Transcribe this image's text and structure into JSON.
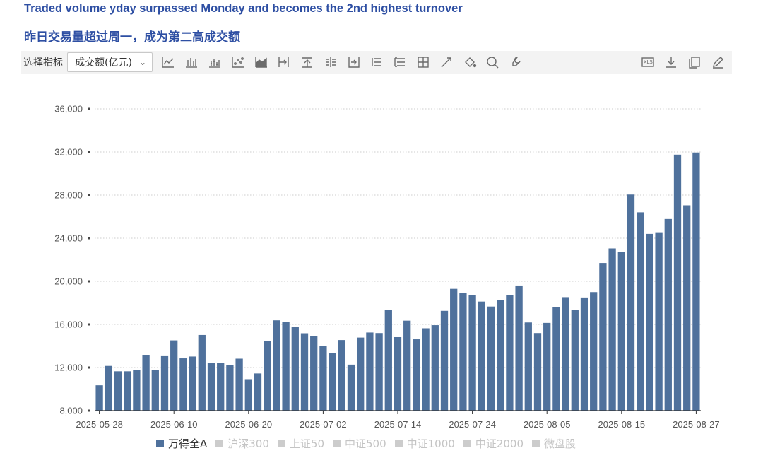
{
  "titles": {
    "english": "Traded volume yday surpassed Monday and becomes the 2nd highest turnover",
    "chinese": "昨日交易量超过周一，成为第二高成交额"
  },
  "toolbar": {
    "indicator_label": "选择指标",
    "indicator_value": "成交额(亿元)",
    "left_icons": [
      "line-chart-icon",
      "bar-chart-icon",
      "stacked-bar-icon",
      "scatter-icon",
      "area-chart-icon",
      "arrow-right-bar-icon",
      "upload-icon",
      "list-align-icon",
      "arrow-into-icon",
      "list-icon",
      "table-list-icon",
      "grid-icon",
      "trend-icon",
      "fill-bucket-icon",
      "zoom-icon",
      "wrench-icon"
    ],
    "xls_label": "XLS",
    "right_icons": [
      "download-icon",
      "copy-icon",
      "edit-icon"
    ]
  },
  "colors": {
    "bar": "#4f719c",
    "grid": "#cccccc",
    "legend_off": "#cccccc",
    "title": "#2e4fa3"
  },
  "chart_data": {
    "type": "bar",
    "title": "",
    "xlabel": "",
    "ylabel": "",
    "ylim": [
      8000,
      36000
    ],
    "yticks": [
      8000,
      12000,
      16000,
      20000,
      24000,
      28000,
      32000,
      36000
    ],
    "ytick_labels": [
      "8,000",
      "12,000",
      "16,000",
      "20,000",
      "24,000",
      "28,000",
      "32,000",
      "36,000"
    ],
    "grid": "horizontal dotted",
    "legend_position": "bottom",
    "categories": [
      "2025-05-28",
      "2025-05-29",
      "2025-05-30",
      "2025-06-03",
      "2025-06-04",
      "2025-06-05",
      "2025-06-06",
      "2025-06-09",
      "2025-06-10",
      "2025-06-11",
      "2025-06-12",
      "2025-06-13",
      "2025-06-16",
      "2025-06-17",
      "2025-06-18",
      "2025-06-19",
      "2025-06-20",
      "2025-06-23",
      "2025-06-24",
      "2025-06-25",
      "2025-06-26",
      "2025-06-27",
      "2025-06-30",
      "2025-07-01",
      "2025-07-02",
      "2025-07-03",
      "2025-07-04",
      "2025-07-07",
      "2025-07-08",
      "2025-07-09",
      "2025-07-10",
      "2025-07-11",
      "2025-07-14",
      "2025-07-15",
      "2025-07-16",
      "2025-07-17",
      "2025-07-18",
      "2025-07-21",
      "2025-07-22",
      "2025-07-23",
      "2025-07-24",
      "2025-07-25",
      "2025-07-28",
      "2025-07-29",
      "2025-07-30",
      "2025-07-31",
      "2025-08-01",
      "2025-08-04",
      "2025-08-05",
      "2025-08-06",
      "2025-08-07",
      "2025-08-08",
      "2025-08-11",
      "2025-08-12",
      "2025-08-13",
      "2025-08-14",
      "2025-08-15",
      "2025-08-18",
      "2025-08-19",
      "2025-08-20",
      "2025-08-21",
      "2025-08-22",
      "2025-08-25",
      "2025-08-26",
      "2025-08-27"
    ],
    "xtick_labels": [
      "2025-05-28",
      "2025-06-10",
      "2025-06-20",
      "2025-07-02",
      "2025-07-14",
      "2025-07-24",
      "2025-08-05",
      "2025-08-15",
      "2025-08-27"
    ],
    "series": [
      {
        "name": "万得全A",
        "values": [
          10350,
          12150,
          11650,
          11650,
          11780,
          13180,
          11780,
          13120,
          14520,
          12850,
          13020,
          15020,
          12450,
          12400,
          12240,
          12820,
          10920,
          11450,
          14460,
          16380,
          16220,
          15780,
          15180,
          14950,
          14020,
          13360,
          14550,
          12270,
          14780,
          15250,
          15200,
          17350,
          14820,
          16350,
          14620,
          15640,
          15930,
          17260,
          19300,
          18950,
          18730,
          18120,
          17660,
          18250,
          18720,
          19610,
          16180,
          15200,
          16140,
          17610,
          18530,
          17350,
          18500,
          19000,
          21700,
          23050,
          22700,
          28050,
          26400,
          24400,
          24550,
          25780,
          31750,
          27050,
          31950
        ]
      }
    ],
    "legend": [
      {
        "name": "万得全A",
        "active": true
      },
      {
        "name": "沪深300",
        "active": false
      },
      {
        "name": "上证50",
        "active": false
      },
      {
        "name": "中证500",
        "active": false
      },
      {
        "name": "中证1000",
        "active": false
      },
      {
        "name": "中证2000",
        "active": false
      },
      {
        "name": "微盘股",
        "active": false
      }
    ]
  }
}
